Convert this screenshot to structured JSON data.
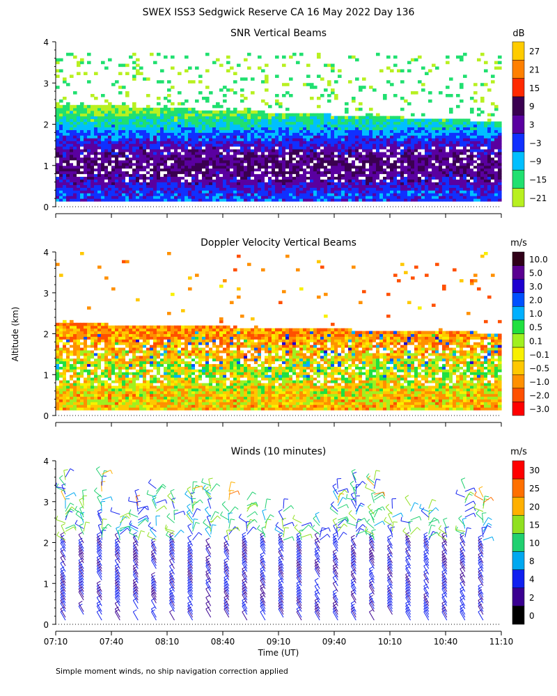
{
  "figure": {
    "title": "SWEX ISS3 Sedgwick Reserve CA  16 May 2022 Day 136",
    "ylabel": "Altitude (km)",
    "xlabel": "Time (UT)",
    "footnote": "Simple moment winds, no ship navigation correction applied"
  },
  "chart_data": [
    {
      "type": "heatmap",
      "title": "SNR Vertical Beams",
      "ylim": [
        0,
        4
      ],
      "yticks": [
        "0",
        "1",
        "2",
        "3",
        "4"
      ],
      "xlim": [
        "07:10",
        "11:10"
      ],
      "colorbar": {
        "unit": "dB",
        "labels": [
          "27",
          "21",
          "15",
          "9",
          "3",
          "−3",
          "−9",
          "−15",
          "−21"
        ],
        "colors": [
          "#ffcc00",
          "#ff8000",
          "#ff2a00",
          "#3a0050",
          "#5a00a0",
          "#1030ff",
          "#00bfff",
          "#20e070",
          "#b8f020"
        ]
      },
      "profile": [
        {
          "alt_km": 0.2,
          "snr_db": 0
        },
        {
          "alt_km": 0.5,
          "snr_db": 6
        },
        {
          "alt_km": 1.0,
          "snr_db": 10
        },
        {
          "alt_km": 1.5,
          "snr_db": 2
        },
        {
          "alt_km": 2.0,
          "snr_db": -10
        },
        {
          "alt_km": 2.5,
          "snr_db": -18
        },
        {
          "alt_km": 3.0,
          "snr_db": -21
        }
      ]
    },
    {
      "type": "heatmap",
      "title": "Doppler Velocity Vertical Beams",
      "ylim": [
        0,
        4
      ],
      "yticks": [
        "0",
        "1",
        "2",
        "3",
        "4"
      ],
      "xlim": [
        "07:10",
        "11:10"
      ],
      "colorbar": {
        "unit": "m/s",
        "labels": [
          "10.0",
          "5.0",
          "3.0",
          "2.0",
          "1.0",
          "0.5",
          "0.1",
          "−0.1",
          "−0.5",
          "−1.0",
          "−2.0",
          "−3.0"
        ],
        "colors": [
          "#300018",
          "#5a0090",
          "#1e00d0",
          "#0050ff",
          "#00b0ff",
          "#20e040",
          "#a0f020",
          "#f8f000",
          "#ffc800",
          "#ff9000",
          "#ff5000",
          "#ff0000"
        ]
      },
      "profile": [
        {
          "alt_km": 0.2,
          "w_ms": -0.3
        },
        {
          "alt_km": 0.5,
          "w_ms": -0.2
        },
        {
          "alt_km": 1.0,
          "w_ms": 0.2
        },
        {
          "alt_km": 1.5,
          "w_ms": -0.5
        },
        {
          "alt_km": 2.0,
          "w_ms": -0.8
        }
      ]
    },
    {
      "type": "scatter",
      "title": "Winds (10 minutes)",
      "ylim": [
        0,
        4
      ],
      "yticks": [
        "0",
        "1",
        "2",
        "3",
        "4"
      ],
      "xticks": [
        "07:10",
        "07:40",
        "08:10",
        "08:40",
        "09:10",
        "09:40",
        "10:10",
        "10:40",
        "11:10"
      ],
      "colorbar": {
        "unit": "m/s",
        "labels": [
          "30",
          "25",
          "20",
          "15",
          "10",
          "8",
          "4",
          "2",
          "0"
        ],
        "colors": [
          "#ff0000",
          "#ff7000",
          "#ffb000",
          "#90e020",
          "#20d070",
          "#00a8f0",
          "#1020f0",
          "#3a0090",
          "#000000"
        ]
      }
    }
  ]
}
